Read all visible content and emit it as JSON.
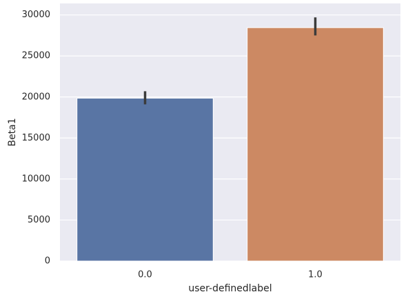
{
  "chart_data": {
    "type": "bar",
    "x_label": "user-definedlabel",
    "y_label": "Beta1",
    "categories": [
      "0.0",
      "1.0"
    ],
    "series": [
      {
        "name": "Beta1",
        "colors": [
          "#5975a4",
          "#cc8963"
        ],
        "values": [
          19850,
          28450
        ],
        "ci_low": [
          19100,
          27500
        ],
        "ci_high": [
          20700,
          29700
        ]
      }
    ],
    "ylim": [
      0,
      31400
    ],
    "yticks": [
      0,
      5000,
      10000,
      15000,
      20000,
      25000,
      30000
    ],
    "grid": true,
    "error_color": "#3b3b3b"
  }
}
